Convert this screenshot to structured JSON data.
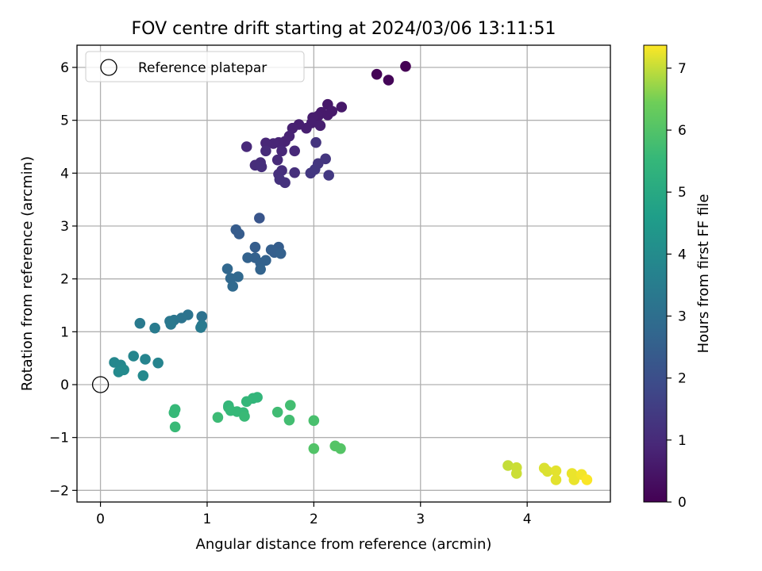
{
  "chart_data": {
    "type": "scatter",
    "title": "FOV centre drift starting at 2024/03/06 13:11:51",
    "xlabel": "Angular distance from reference (arcmin)",
    "ylabel": "Rotation from reference (arcmin)",
    "xlim": [
      -0.22,
      4.78
    ],
    "ylim": [
      -2.22,
      6.42
    ],
    "xticks": [
      0,
      1,
      2,
      3,
      4
    ],
    "yticks": [
      -2,
      -1,
      0,
      1,
      2,
      3,
      4,
      5,
      6
    ],
    "grid": true,
    "legend": {
      "position": "top-left",
      "entries": [
        "Reference platepar"
      ]
    },
    "reference_point": {
      "label": "Reference platepar",
      "x": 0,
      "y": 0,
      "marker": "hollow-circle"
    },
    "colorbar": {
      "label": "Hours from first FF file",
      "min": 0,
      "max": 7.37,
      "ticks": [
        0,
        1,
        2,
        3,
        4,
        5,
        6,
        7
      ],
      "colormap": "viridis"
    },
    "points": [
      {
        "x": 2.86,
        "y": 6.02,
        "c": 0.0
      },
      {
        "x": 2.59,
        "y": 5.87,
        "c": 0.05
      },
      {
        "x": 2.7,
        "y": 5.76,
        "c": 0.1
      },
      {
        "x": 2.26,
        "y": 5.25,
        "c": 0.55
      },
      {
        "x": 2.13,
        "y": 5.3,
        "c": 0.55
      },
      {
        "x": 2.17,
        "y": 5.17,
        "c": 0.58
      },
      {
        "x": 2.07,
        "y": 5.15,
        "c": 0.6
      },
      {
        "x": 2.04,
        "y": 5.08,
        "c": 0.62
      },
      {
        "x": 2.13,
        "y": 5.1,
        "c": 0.6
      },
      {
        "x": 1.99,
        "y": 5.05,
        "c": 0.65
      },
      {
        "x": 2.06,
        "y": 4.9,
        "c": 0.7
      },
      {
        "x": 1.98,
        "y": 4.95,
        "c": 0.68
      },
      {
        "x": 1.93,
        "y": 4.85,
        "c": 0.72
      },
      {
        "x": 1.86,
        "y": 4.92,
        "c": 0.72
      },
      {
        "x": 1.8,
        "y": 4.85,
        "c": 0.75
      },
      {
        "x": 1.77,
        "y": 4.7,
        "c": 0.8
      },
      {
        "x": 1.73,
        "y": 4.6,
        "c": 0.82
      },
      {
        "x": 1.67,
        "y": 4.58,
        "c": 0.85
      },
      {
        "x": 1.62,
        "y": 4.56,
        "c": 0.88
      },
      {
        "x": 1.55,
        "y": 4.57,
        "c": 0.9
      },
      {
        "x": 1.7,
        "y": 4.42,
        "c": 0.92
      },
      {
        "x": 1.82,
        "y": 4.42,
        "c": 0.95
      },
      {
        "x": 1.37,
        "y": 4.5,
        "c": 0.95
      },
      {
        "x": 1.55,
        "y": 4.42,
        "c": 1.0
      },
      {
        "x": 1.66,
        "y": 4.25,
        "c": 1.0
      },
      {
        "x": 1.5,
        "y": 4.2,
        "c": 1.05
      },
      {
        "x": 1.45,
        "y": 4.15,
        "c": 1.05
      },
      {
        "x": 1.51,
        "y": 4.12,
        "c": 1.1
      },
      {
        "x": 1.7,
        "y": 4.05,
        "c": 1.1
      },
      {
        "x": 1.67,
        "y": 3.98,
        "c": 1.15
      },
      {
        "x": 1.82,
        "y": 4.01,
        "c": 1.15
      },
      {
        "x": 1.68,
        "y": 3.88,
        "c": 1.2
      },
      {
        "x": 1.73,
        "y": 3.82,
        "c": 1.2
      },
      {
        "x": 2.02,
        "y": 4.58,
        "c": 1.25
      },
      {
        "x": 2.11,
        "y": 4.27,
        "c": 1.3
      },
      {
        "x": 2.04,
        "y": 4.18,
        "c": 1.3
      },
      {
        "x": 1.97,
        "y": 4.0,
        "c": 1.35
      },
      {
        "x": 2.01,
        "y": 4.07,
        "c": 1.35
      },
      {
        "x": 2.14,
        "y": 3.96,
        "c": 1.4
      },
      {
        "x": 1.49,
        "y": 3.15,
        "c": 2.2
      },
      {
        "x": 1.27,
        "y": 2.93,
        "c": 2.4
      },
      {
        "x": 1.3,
        "y": 2.85,
        "c": 2.4
      },
      {
        "x": 1.45,
        "y": 2.6,
        "c": 2.45
      },
      {
        "x": 1.67,
        "y": 2.6,
        "c": 2.45
      },
      {
        "x": 1.6,
        "y": 2.55,
        "c": 2.5
      },
      {
        "x": 1.63,
        "y": 2.5,
        "c": 2.5
      },
      {
        "x": 1.69,
        "y": 2.48,
        "c": 2.55
      },
      {
        "x": 1.45,
        "y": 2.4,
        "c": 2.55
      },
      {
        "x": 1.38,
        "y": 2.4,
        "c": 2.6
      },
      {
        "x": 1.55,
        "y": 2.35,
        "c": 2.6
      },
      {
        "x": 1.5,
        "y": 2.3,
        "c": 2.6
      },
      {
        "x": 1.5,
        "y": 2.18,
        "c": 2.65
      },
      {
        "x": 1.19,
        "y": 2.19,
        "c": 2.75
      },
      {
        "x": 1.29,
        "y": 2.04,
        "c": 2.8
      },
      {
        "x": 1.22,
        "y": 2.01,
        "c": 2.8
      },
      {
        "x": 1.24,
        "y": 1.86,
        "c": 2.85
      },
      {
        "x": 0.95,
        "y": 1.29,
        "c": 3.1
      },
      {
        "x": 0.82,
        "y": 1.32,
        "c": 3.15
      },
      {
        "x": 0.76,
        "y": 1.26,
        "c": 3.2
      },
      {
        "x": 0.69,
        "y": 1.22,
        "c": 3.25
      },
      {
        "x": 0.65,
        "y": 1.2,
        "c": 3.3
      },
      {
        "x": 0.66,
        "y": 1.14,
        "c": 3.35
      },
      {
        "x": 0.37,
        "y": 1.16,
        "c": 3.4
      },
      {
        "x": 0.51,
        "y": 1.07,
        "c": 3.45
      },
      {
        "x": 0.95,
        "y": 1.12,
        "c": 3.35
      },
      {
        "x": 0.94,
        "y": 1.08,
        "c": 3.4
      },
      {
        "x": 0.13,
        "y": 0.42,
        "c": 3.85
      },
      {
        "x": 0.19,
        "y": 0.37,
        "c": 3.85
      },
      {
        "x": 0.31,
        "y": 0.54,
        "c": 3.8
      },
      {
        "x": 0.42,
        "y": 0.48,
        "c": 3.75
      },
      {
        "x": 0.54,
        "y": 0.41,
        "c": 3.75
      },
      {
        "x": 0.22,
        "y": 0.28,
        "c": 3.95
      },
      {
        "x": 0.17,
        "y": 0.24,
        "c": 3.95
      },
      {
        "x": 0.4,
        "y": 0.17,
        "c": 3.9
      },
      {
        "x": 1.47,
        "y": -0.24,
        "c": 5.45
      },
      {
        "x": 1.43,
        "y": -0.26,
        "c": 5.45
      },
      {
        "x": 1.37,
        "y": -0.32,
        "c": 5.5
      },
      {
        "x": 1.2,
        "y": -0.4,
        "c": 5.5
      },
      {
        "x": 1.2,
        "y": -0.43,
        "c": 5.5
      },
      {
        "x": 1.22,
        "y": -0.49,
        "c": 5.55
      },
      {
        "x": 1.28,
        "y": -0.51,
        "c": 5.55
      },
      {
        "x": 1.34,
        "y": -0.53,
        "c": 5.55
      },
      {
        "x": 1.35,
        "y": -0.6,
        "c": 5.6
      },
      {
        "x": 0.7,
        "y": -0.47,
        "c": 5.55
      },
      {
        "x": 0.69,
        "y": -0.53,
        "c": 5.55
      },
      {
        "x": 0.7,
        "y": -0.8,
        "c": 5.6
      },
      {
        "x": 1.1,
        "y": -0.62,
        "c": 5.65
      },
      {
        "x": 1.66,
        "y": -0.52,
        "c": 5.7
      },
      {
        "x": 1.78,
        "y": -0.39,
        "c": 5.75
      },
      {
        "x": 1.77,
        "y": -0.67,
        "c": 5.75
      },
      {
        "x": 2.0,
        "y": -0.68,
        "c": 5.85
      },
      {
        "x": 2.0,
        "y": -1.21,
        "c": 6.0
      },
      {
        "x": 2.2,
        "y": -1.16,
        "c": 6.05
      },
      {
        "x": 2.25,
        "y": -1.21,
        "c": 6.05
      },
      {
        "x": 3.82,
        "y": -1.53,
        "c": 7.0
      },
      {
        "x": 3.9,
        "y": -1.57,
        "c": 7.05
      },
      {
        "x": 3.9,
        "y": -1.68,
        "c": 7.05
      },
      {
        "x": 4.16,
        "y": -1.58,
        "c": 7.15
      },
      {
        "x": 4.19,
        "y": -1.64,
        "c": 7.15
      },
      {
        "x": 4.27,
        "y": -1.63,
        "c": 7.2
      },
      {
        "x": 4.27,
        "y": -1.8,
        "c": 7.2
      },
      {
        "x": 4.42,
        "y": -1.68,
        "c": 7.25
      },
      {
        "x": 4.44,
        "y": -1.8,
        "c": 7.25
      },
      {
        "x": 4.51,
        "y": -1.7,
        "c": 7.3
      },
      {
        "x": 4.56,
        "y": -1.8,
        "c": 7.35
      }
    ]
  }
}
